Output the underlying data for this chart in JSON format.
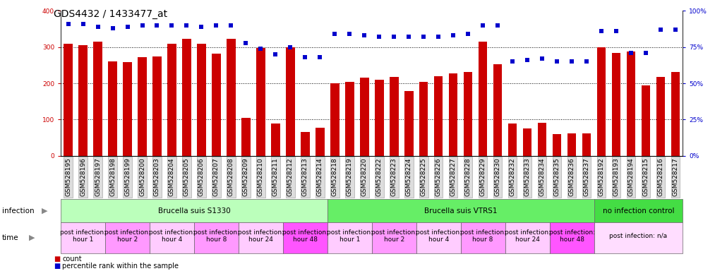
{
  "title": "GDS4432 / 1433477_at",
  "bar_color": "#cc0000",
  "dot_color": "#0000cc",
  "categories": [
    "GSM528195",
    "GSM528196",
    "GSM528197",
    "GSM528198",
    "GSM528199",
    "GSM528200",
    "GSM528203",
    "GSM528204",
    "GSM528205",
    "GSM528206",
    "GSM528207",
    "GSM528208",
    "GSM528209",
    "GSM528210",
    "GSM528211",
    "GSM528212",
    "GSM528213",
    "GSM528214",
    "GSM528218",
    "GSM528219",
    "GSM528220",
    "GSM528222",
    "GSM528223",
    "GSM528224",
    "GSM528225",
    "GSM528226",
    "GSM528227",
    "GSM528228",
    "GSM528229",
    "GSM528230",
    "GSM528232",
    "GSM528233",
    "GSM528234",
    "GSM528235",
    "GSM528236",
    "GSM528237",
    "GSM528192",
    "GSM528193",
    "GSM528194",
    "GSM528215",
    "GSM528216",
    "GSM528217"
  ],
  "bar_values": [
    310,
    305,
    315,
    260,
    258,
    273,
    275,
    310,
    322,
    310,
    282,
    322,
    105,
    298,
    90,
    300,
    66,
    78,
    200,
    205,
    215,
    210,
    218,
    178,
    205,
    220,
    228,
    232,
    315,
    252,
    90,
    75,
    92,
    60,
    62,
    62,
    300,
    283,
    288,
    195,
    218,
    232
  ],
  "dot_values_pct": [
    91,
    91,
    89,
    88,
    89,
    90,
    90,
    90,
    90,
    89,
    90,
    90,
    78,
    74,
    70,
    75,
    68,
    68,
    84,
    84,
    83,
    82,
    82,
    82,
    82,
    82,
    83,
    84,
    90,
    90,
    65,
    66,
    67,
    65,
    65,
    65,
    86,
    86,
    71,
    71,
    87,
    87
  ],
  "ylim_left": [
    0,
    400
  ],
  "ylim_right": [
    0,
    100
  ],
  "yticks_left": [
    0,
    100,
    200,
    300,
    400
  ],
  "yticks_right": [
    0,
    25,
    50,
    75,
    100
  ],
  "infection_groups": [
    {
      "label": "Brucella suis S1330",
      "start": 0,
      "end": 18,
      "color": "#bbffbb"
    },
    {
      "label": "Brucella suis VTRS1",
      "start": 18,
      "end": 36,
      "color": "#66ee66"
    },
    {
      "label": "no infection control",
      "start": 36,
      "end": 42,
      "color": "#44dd44"
    }
  ],
  "time_groups": [
    {
      "label": "post infection:\nhour 1",
      "start": 0,
      "end": 3,
      "color": "#ffccff"
    },
    {
      "label": "post infection:\nhour 2",
      "start": 3,
      "end": 6,
      "color": "#ff99ff"
    },
    {
      "label": "post infection:\nhour 4",
      "start": 6,
      "end": 9,
      "color": "#ffccff"
    },
    {
      "label": "post infection:\nhour 8",
      "start": 9,
      "end": 12,
      "color": "#ff99ff"
    },
    {
      "label": "post infection:\nhour 24",
      "start": 12,
      "end": 15,
      "color": "#ffccff"
    },
    {
      "label": "post infection:\nhour 48",
      "start": 15,
      "end": 18,
      "color": "#ff55ff"
    },
    {
      "label": "post infection:\nhour 1",
      "start": 18,
      "end": 21,
      "color": "#ffccff"
    },
    {
      "label": "post infection:\nhour 2",
      "start": 21,
      "end": 24,
      "color": "#ff99ff"
    },
    {
      "label": "post infection:\nhour 4",
      "start": 24,
      "end": 27,
      "color": "#ffccff"
    },
    {
      "label": "post infection:\nhour 8",
      "start": 27,
      "end": 30,
      "color": "#ff99ff"
    },
    {
      "label": "post infection:\nhour 24",
      "start": 30,
      "end": 33,
      "color": "#ffccff"
    },
    {
      "label": "post infection:\nhour 48",
      "start": 33,
      "end": 36,
      "color": "#ff55ff"
    },
    {
      "label": "post infection: n/a",
      "start": 36,
      "end": 42,
      "color": "#ffddff"
    }
  ],
  "grid_color": "#888888",
  "tick_label_color_left": "#cc0000",
  "tick_label_color_right": "#0000cc",
  "title_fontsize": 10,
  "tick_fontsize": 6.5,
  "annot_fontsize": 7.5,
  "time_fontsize": 6.5
}
